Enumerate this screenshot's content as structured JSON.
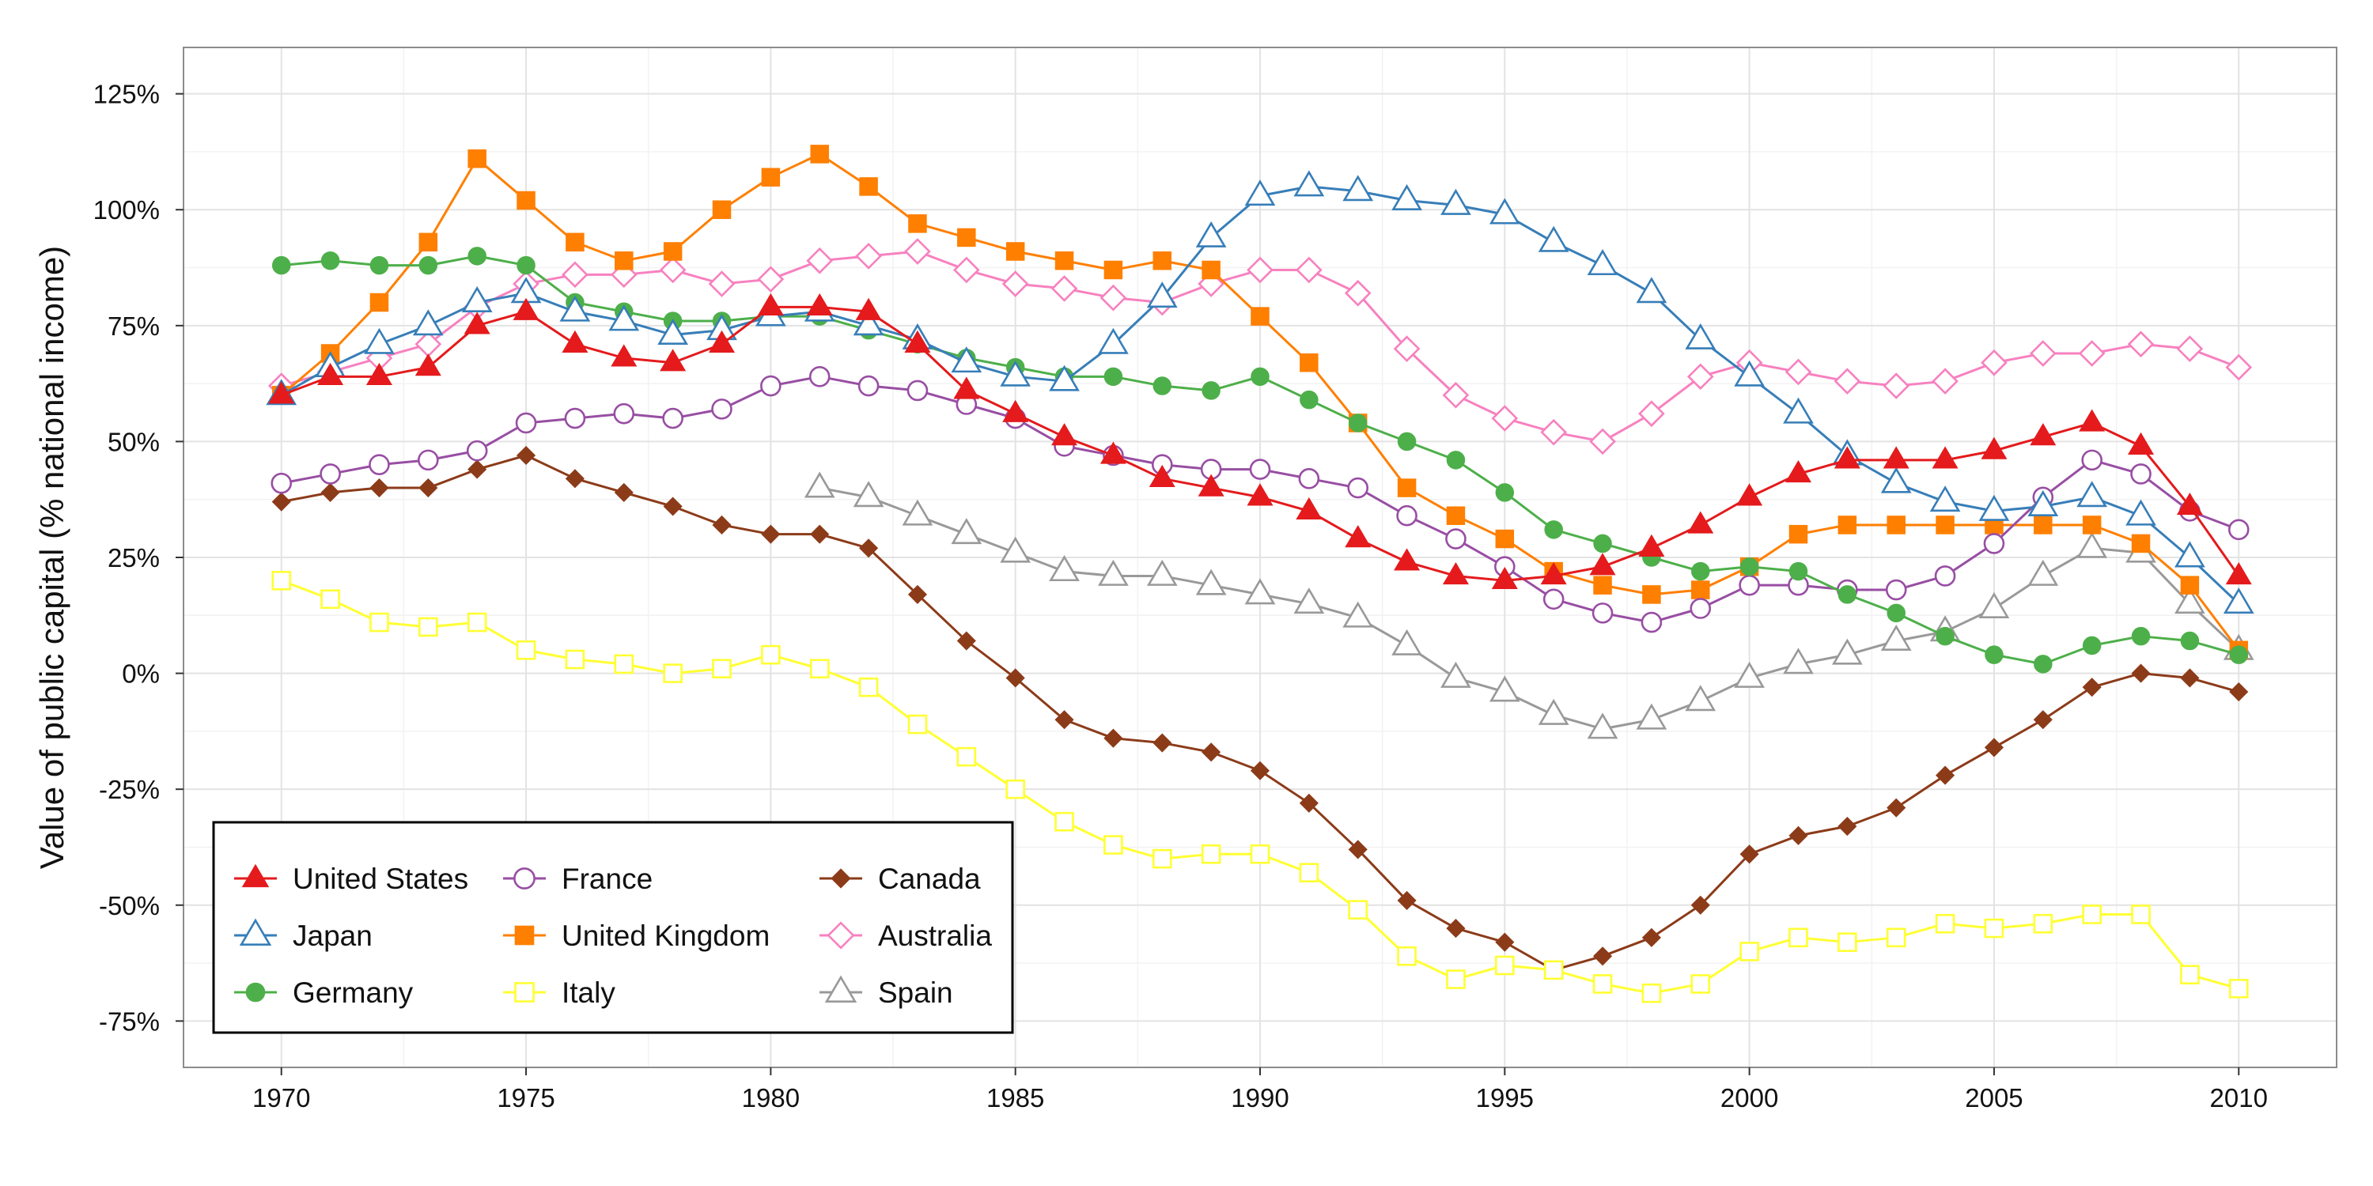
{
  "chart_data": {
    "type": "line",
    "title": "",
    "xlabel": "",
    "ylabel": "Value of public capital (% national income)",
    "xlim": [
      1968,
      2012
    ],
    "ylim": [
      -85,
      135
    ],
    "x_ticks": [
      1970,
      1975,
      1980,
      1985,
      1990,
      1995,
      2000,
      2005,
      2010
    ],
    "x_tick_labels": [
      "1970",
      "1975",
      "1980",
      "1985",
      "1990",
      "1995",
      "2000",
      "2005",
      "2010"
    ],
    "y_ticks": [
      -75,
      -50,
      -25,
      0,
      25,
      50,
      75,
      100,
      125
    ],
    "y_tick_labels": [
      "-75%",
      "-50%",
      "-25%",
      "0%",
      "25%",
      "50%",
      "75%",
      "100%",
      "125%"
    ],
    "grid": true,
    "legend_position": "bottom-left",
    "series": [
      {
        "name": "United States",
        "color": "#e41a1c",
        "marker": "triangle-filled",
        "x_start": 1970,
        "values": [
          60,
          64,
          64,
          66,
          75,
          78,
          71,
          68,
          67,
          71,
          79,
          79,
          78,
          71,
          61,
          56,
          51,
          47,
          42,
          40,
          38,
          35,
          29,
          24,
          21,
          20,
          21,
          23,
          27,
          32,
          38,
          43,
          46,
          46,
          46,
          48,
          51,
          54,
          49,
          36,
          21
        ]
      },
      {
        "name": "Japan",
        "color": "#377eb8",
        "marker": "triangle-open",
        "x_start": 1970,
        "values": [
          60,
          66,
          71,
          75,
          80,
          82,
          78,
          76,
          73,
          74,
          77,
          78,
          75,
          72,
          67,
          64,
          63,
          71,
          81,
          94,
          103,
          105,
          104,
          102,
          101,
          99,
          93,
          88,
          82,
          72,
          64,
          56,
          47,
          41,
          37,
          35,
          36,
          38,
          34,
          25,
          15
        ]
      },
      {
        "name": "Germany",
        "color": "#4daf4a",
        "marker": "circle-filled",
        "x_start": 1970,
        "values": [
          88,
          89,
          88,
          88,
          90,
          88,
          80,
          78,
          76,
          76,
          77,
          77,
          74,
          71,
          68,
          66,
          64,
          64,
          62,
          61,
          64,
          59,
          54,
          50,
          46,
          39,
          31,
          28,
          25,
          22,
          23,
          22,
          17,
          13,
          8,
          4,
          2,
          6,
          8,
          7,
          4
        ]
      },
      {
        "name": "France",
        "color": "#984ea3",
        "marker": "circle-open",
        "x_start": 1970,
        "values": [
          41,
          43,
          45,
          46,
          48,
          54,
          55,
          56,
          55,
          57,
          62,
          64,
          62,
          61,
          58,
          55,
          49,
          47,
          45,
          44,
          44,
          42,
          40,
          34,
          29,
          23,
          16,
          13,
          11,
          14,
          19,
          19,
          18,
          18,
          21,
          28,
          38,
          46,
          43,
          35,
          31
        ]
      },
      {
        "name": "United Kingdom",
        "color": "#ff7f00",
        "marker": "square-filled",
        "x_start": 1970,
        "values": [
          60,
          69,
          80,
          93,
          111,
          102,
          93,
          89,
          91,
          100,
          107,
          112,
          105,
          97,
          94,
          91,
          89,
          87,
          89,
          87,
          77,
          67,
          54,
          40,
          34,
          29,
          22,
          19,
          17,
          18,
          23,
          30,
          32,
          32,
          32,
          32,
          32,
          32,
          28,
          19,
          5
        ]
      },
      {
        "name": "Italy",
        "color": "#ffff33",
        "marker": "square-open",
        "x_start": 1970,
        "values": [
          20,
          16,
          11,
          10,
          11,
          5,
          3,
          2,
          0,
          1,
          4,
          1,
          -3,
          -11,
          -18,
          -25,
          -32,
          -37,
          -40,
          -39,
          -39,
          -43,
          -51,
          -61,
          -66,
          -63,
          -64,
          -67,
          -69,
          -67,
          -60,
          -57,
          -58,
          -57,
          -54,
          -55,
          -54,
          -52,
          -52,
          -65,
          -68
        ]
      },
      {
        "name": "Canada",
        "color": "#8c3b19",
        "marker": "diamond-filled",
        "x_start": 1970,
        "values": [
          37,
          39,
          40,
          40,
          44,
          47,
          42,
          39,
          36,
          32,
          30,
          30,
          27,
          17,
          7,
          -1,
          -10,
          -14,
          -15,
          -17,
          -21,
          -28,
          -38,
          -49,
          -55,
          -58,
          -64,
          -61,
          -57,
          -50,
          -39,
          -35,
          -33,
          -29,
          -22,
          -16,
          -10,
          -3,
          0,
          -1,
          -4
        ]
      },
      {
        "name": "Australia",
        "color": "#f781bf",
        "marker": "diamond-open",
        "x_start": 1970,
        "values": [
          62,
          65,
          68,
          71,
          79,
          84,
          86,
          86,
          87,
          84,
          85,
          89,
          90,
          91,
          87,
          84,
          83,
          81,
          80,
          84,
          87,
          87,
          82,
          70,
          60,
          55,
          52,
          50,
          56,
          64,
          67,
          65,
          63,
          62,
          63,
          67,
          69,
          69,
          71,
          70,
          66
        ]
      },
      {
        "name": "Spain",
        "color": "#999999",
        "marker": "triangle-open",
        "x_start": 1981,
        "values": [
          40,
          38,
          34,
          30,
          26,
          22,
          21,
          21,
          19,
          17,
          15,
          12,
          6,
          -1,
          -4,
          -9,
          -12,
          -10,
          -6,
          -1,
          2,
          4,
          7,
          9,
          14,
          21,
          27,
          26,
          15,
          5
        ]
      }
    ]
  }
}
